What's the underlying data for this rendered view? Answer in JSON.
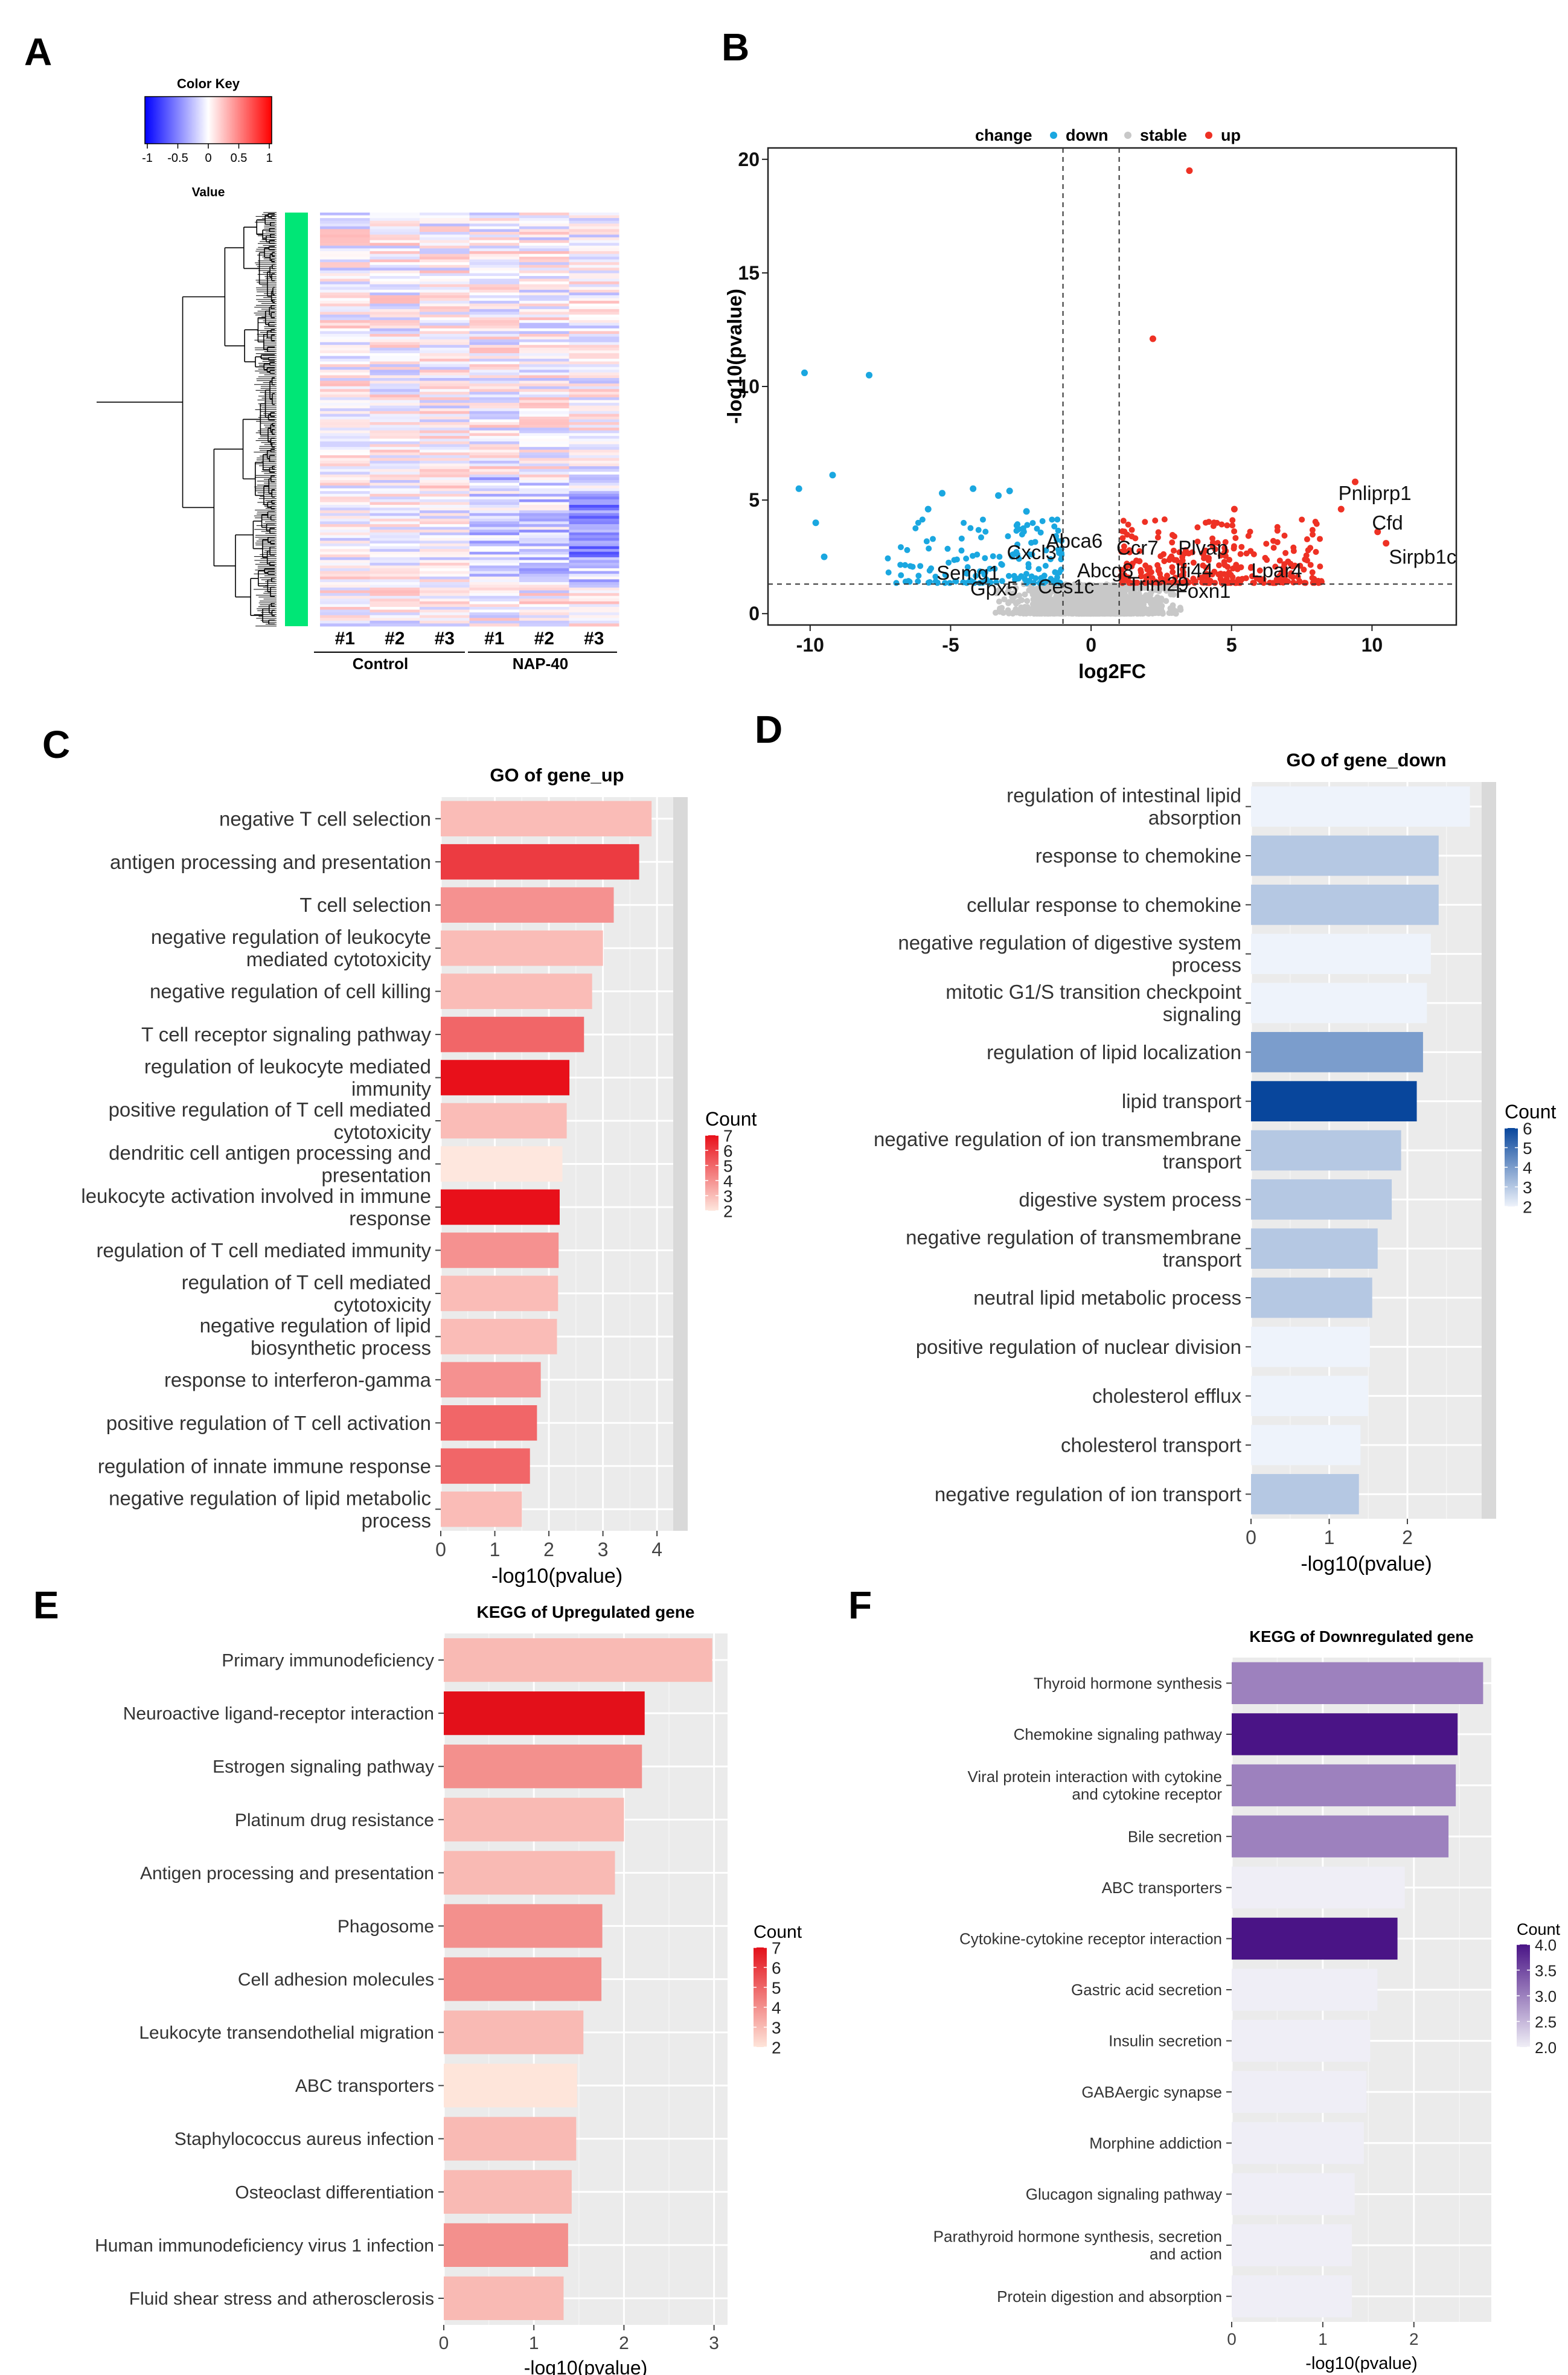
{
  "panels": {
    "A": {
      "letter": "A",
      "type": "heatmap",
      "color_key": {
        "title": "Color Key",
        "axis_label": "Value",
        "ticks": [
          "-1",
          "-0.5",
          "0",
          "0.5",
          "1"
        ],
        "colors": [
          "#0000ff",
          "#ffffff",
          "#ff0000"
        ]
      },
      "sample_labels": [
        "#1",
        "#2",
        "#3",
        "#1",
        "#2",
        "#3"
      ],
      "groups": [
        "Control",
        "NAP-40"
      ],
      "cluster_bar_color": "#00e676"
    },
    "B": {
      "letter": "B",
      "type": "scatter",
      "xlabel": "log2FC",
      "ylabel": "-log10(pvalue)",
      "xlim": [
        -11.5,
        13
      ],
      "ylim": [
        -0.5,
        20.5
      ],
      "xticks": [
        -10,
        -5,
        0,
        5,
        10
      ],
      "yticks": [
        0,
        5,
        10,
        15,
        20
      ],
      "legend": {
        "title": "change",
        "entries": [
          {
            "label": "down",
            "color": "#1aa7e0"
          },
          {
            "label": "stable",
            "color": "#c8c8c8"
          },
          {
            "label": "up",
            "color": "#ee3124"
          }
        ]
      },
      "thresholds": {
        "fc": [
          -1,
          1
        ],
        "p": 1.3
      },
      "highlight_points": [
        {
          "x": -10.2,
          "y": 10.6,
          "c": "down"
        },
        {
          "x": -7.9,
          "y": 10.5,
          "c": "down"
        },
        {
          "x": -9.2,
          "y": 6.1,
          "c": "down"
        },
        {
          "x": -10.4,
          "y": 5.5,
          "c": "down"
        },
        {
          "x": -9.8,
          "y": 4.0,
          "c": "down"
        },
        {
          "x": -9.5,
          "y": 2.5,
          "c": "down"
        },
        {
          "x": -5.3,
          "y": 5.3,
          "c": "down"
        },
        {
          "x": -4.2,
          "y": 5.5,
          "c": "down"
        },
        {
          "x": -3.3,
          "y": 5.2,
          "c": "down"
        },
        {
          "x": -2.9,
          "y": 5.4,
          "c": "down"
        },
        {
          "x": -5.8,
          "y": 4.6,
          "c": "down"
        },
        {
          "x": -2.3,
          "y": 4.5,
          "c": "down"
        },
        {
          "x": 3.5,
          "y": 19.5,
          "c": "up"
        },
        {
          "x": 2.2,
          "y": 12.1,
          "c": "up"
        },
        {
          "x": 9.4,
          "y": 5.8,
          "c": "up"
        },
        {
          "x": 8.9,
          "y": 4.6,
          "c": "up"
        },
        {
          "x": 10.2,
          "y": 3.6,
          "c": "up"
        },
        {
          "x": 10.5,
          "y": 3.1,
          "c": "up"
        },
        {
          "x": 5.1,
          "y": 4.6,
          "c": "up"
        }
      ],
      "gene_labels": [
        {
          "text": "Pnliprp1",
          "x": 8.8,
          "y": 5.0
        },
        {
          "text": "Cfd",
          "x": 10.0,
          "y": 3.7
        },
        {
          "text": "Sirpb1c",
          "x": 10.6,
          "y": 2.2
        },
        {
          "text": "Abca6",
          "x": -1.6,
          "y": 2.9
        },
        {
          "text": "Cxcl3",
          "x": -3.0,
          "y": 2.4
        },
        {
          "text": "Ccr7",
          "x": 0.9,
          "y": 2.6
        },
        {
          "text": "Plvap",
          "x": 3.1,
          "y": 2.6
        },
        {
          "text": "Semg1",
          "x": -5.5,
          "y": 1.5
        },
        {
          "text": "Abcg8",
          "x": -0.5,
          "y": 1.6
        },
        {
          "text": "Ifi44",
          "x": 3.0,
          "y": 1.6
        },
        {
          "text": "Lpar4",
          "x": 5.7,
          "y": 1.6
        },
        {
          "text": "Gpx5",
          "x": -4.3,
          "y": 0.8
        },
        {
          "text": "Ces1c",
          "x": -1.9,
          "y": 0.9
        },
        {
          "text": "Trim29",
          "x": 1.3,
          "y": 1.0
        },
        {
          "text": "Foxn1",
          "x": 3.0,
          "y": 0.7
        }
      ]
    },
    "C": {
      "letter": "C",
      "type": "bar",
      "title": "GO of gene_up",
      "xlabel": "-log10(pvalue)",
      "xlim": [
        0,
        4.3
      ],
      "xticks": [
        0,
        1,
        2,
        3,
        4
      ],
      "legend": {
        "title": "Count",
        "ticks": [
          "7",
          "6",
          "5",
          "4",
          "3",
          "2"
        ],
        "min": 2,
        "max": 7,
        "low_color": "#fee7de",
        "high_color": "#e8101a",
        "strip": true
      },
      "bars": [
        {
          "label": [
            "negative T cell selection"
          ],
          "value": 3.9,
          "count": 3
        },
        {
          "label": [
            "antigen processing and presentation"
          ],
          "value": 3.67,
          "count": 6
        },
        {
          "label": [
            "T cell selection"
          ],
          "value": 3.2,
          "count": 4
        },
        {
          "label": [
            "negative regulation of leukocyte",
            "mediated cytotoxicity"
          ],
          "value": 3.0,
          "count": 3
        },
        {
          "label": [
            "negative regulation of cell killing"
          ],
          "value": 2.8,
          "count": 3
        },
        {
          "label": [
            "T cell receptor signaling pathway"
          ],
          "value": 2.65,
          "count": 5
        },
        {
          "label": [
            "regulation of leukocyte mediated",
            "immunity"
          ],
          "value": 2.38,
          "count": 7
        },
        {
          "label": [
            "positive regulation of T cell mediated",
            "cytotoxicity"
          ],
          "value": 2.33,
          "count": 3
        },
        {
          "label": [
            "dendritic cell antigen processing and",
            "presentation"
          ],
          "value": 2.25,
          "count": 2
        },
        {
          "label": [
            "leukocyte activation involved in immune",
            "response"
          ],
          "value": 2.2,
          "count": 7
        },
        {
          "label": [
            "regulation of T cell mediated immunity"
          ],
          "value": 2.18,
          "count": 4
        },
        {
          "label": [
            "regulation of T cell mediated",
            "cytotoxicity"
          ],
          "value": 2.17,
          "count": 3
        },
        {
          "label": [
            "negative regulation of lipid",
            "biosynthetic process"
          ],
          "value": 2.15,
          "count": 3
        },
        {
          "label": [
            "response to interferon-gamma"
          ],
          "value": 1.85,
          "count": 4
        },
        {
          "label": [
            "positive regulation of T cell activation"
          ],
          "value": 1.78,
          "count": 5
        },
        {
          "label": [
            "regulation of innate immune response"
          ],
          "value": 1.65,
          "count": 5
        },
        {
          "label": [
            "negative regulation of lipid metabolic",
            "process"
          ],
          "value": 1.5,
          "count": 3
        }
      ]
    },
    "D": {
      "letter": "D",
      "type": "bar",
      "title": "GO of gene_down",
      "xlabel": "-log10(pvalue)",
      "xlim": [
        0,
        2.95
      ],
      "xticks": [
        0,
        1,
        2
      ],
      "legend": {
        "title": "Count",
        "ticks": [
          "6",
          "5",
          "4",
          "3",
          "2"
        ],
        "min": 2,
        "max": 6,
        "low_color": "#eef3fb",
        "high_color": "#08469c",
        "strip": true
      },
      "bars": [
        {
          "label": [
            "regulation of intestinal lipid",
            "absorption"
          ],
          "value": 2.8,
          "count": 2
        },
        {
          "label": [
            "response to chemokine"
          ],
          "value": 2.4,
          "count": 3
        },
        {
          "label": [
            "cellular response to chemokine"
          ],
          "value": 2.4,
          "count": 3
        },
        {
          "label": [
            "negative regulation of digestive system",
            "process"
          ],
          "value": 2.3,
          "count": 2
        },
        {
          "label": [
            "mitotic G1/S transition checkpoint",
            "signaling"
          ],
          "value": 2.25,
          "count": 2
        },
        {
          "label": [
            "regulation of lipid localization"
          ],
          "value": 2.2,
          "count": 4
        },
        {
          "label": [
            "lipid transport"
          ],
          "value": 2.12,
          "count": 6
        },
        {
          "label": [
            "negative regulation of ion transmembrane",
            "transport"
          ],
          "value": 1.92,
          "count": 3
        },
        {
          "label": [
            "digestive system process"
          ],
          "value": 1.8,
          "count": 3
        },
        {
          "label": [
            "negative regulation of transmembrane",
            "transport"
          ],
          "value": 1.62,
          "count": 3
        },
        {
          "label": [
            "neutral lipid metabolic process"
          ],
          "value": 1.55,
          "count": 3
        },
        {
          "label": [
            "positive regulation of nuclear division"
          ],
          "value": 1.52,
          "count": 2
        },
        {
          "label": [
            "cholesterol efflux"
          ],
          "value": 1.5,
          "count": 2
        },
        {
          "label": [
            "cholesterol transport"
          ],
          "value": 1.4,
          "count": 2
        },
        {
          "label": [
            "negative regulation of ion transport"
          ],
          "value": 1.38,
          "count": 3
        }
      ]
    },
    "E": {
      "letter": "E",
      "type": "bar",
      "title": "KEGG of Upregulated gene",
      "xlabel": "-log10(pvalue)",
      "xlim": [
        0,
        3.15
      ],
      "xticks": [
        0,
        1,
        2,
        3
      ],
      "legend": {
        "title": "Count",
        "ticks": [
          "7",
          "6",
          "5",
          "4",
          "3",
          "2"
        ],
        "min": 2,
        "max": 7,
        "low_color": "#fee5da",
        "high_color": "#e3101a",
        "strip": false
      },
      "bars": [
        {
          "label": [
            "Primary immunodeficiency"
          ],
          "value": 2.98,
          "count": 3
        },
        {
          "label": [
            "Neuroactive ligand-receptor interaction"
          ],
          "value": 2.23,
          "count": 7
        },
        {
          "label": [
            "Estrogen signaling pathway"
          ],
          "value": 2.2,
          "count": 4
        },
        {
          "label": [
            "Platinum drug resistance"
          ],
          "value": 2.0,
          "count": 3
        },
        {
          "label": [
            "Antigen processing and presentation"
          ],
          "value": 1.9,
          "count": 3
        },
        {
          "label": [
            "Phagosome"
          ],
          "value": 1.76,
          "count": 4
        },
        {
          "label": [
            "Cell adhesion molecules"
          ],
          "value": 1.75,
          "count": 4
        },
        {
          "label": [
            "Leukocyte transendothelial migration"
          ],
          "value": 1.55,
          "count": 3
        },
        {
          "label": [
            "ABC transporters"
          ],
          "value": 1.48,
          "count": 2
        },
        {
          "label": [
            "Staphylococcus aureus infection"
          ],
          "value": 1.47,
          "count": 3
        },
        {
          "label": [
            "Osteoclast differentiation"
          ],
          "value": 1.42,
          "count": 3
        },
        {
          "label": [
            "Human immunodeficiency virus 1 infection"
          ],
          "value": 1.38,
          "count": 4
        },
        {
          "label": [
            "Fluid shear stress and atherosclerosis"
          ],
          "value": 1.33,
          "count": 3
        }
      ]
    },
    "F": {
      "letter": "F",
      "type": "bar",
      "title": "KEGG of Downregulated gene",
      "xlabel": "-log10(pvalue)",
      "xlim": [
        0,
        2.85
      ],
      "xticks": [
        0,
        1,
        2
      ],
      "legend": {
        "title": "Count",
        "ticks": [
          "4.0",
          "3.5",
          "3.0",
          "2.5",
          "2.0"
        ],
        "min": 2,
        "max": 4,
        "low_color": "#efeef6",
        "high_color": "#4a1486",
        "strip": false
      },
      "bars": [
        {
          "label": [
            "Thyroid hormone synthesis"
          ],
          "value": 2.76,
          "count": 3
        },
        {
          "label": [
            "Chemokine signaling pathway"
          ],
          "value": 2.48,
          "count": 4
        },
        {
          "label": [
            "Viral protein interaction with cytokine",
            "and cytokine receptor"
          ],
          "value": 2.46,
          "count": 3
        },
        {
          "label": [
            "Bile secretion"
          ],
          "value": 2.38,
          "count": 3
        },
        {
          "label": [
            "ABC transporters"
          ],
          "value": 1.9,
          "count": 2
        },
        {
          "label": [
            "Cytokine-cytokine receptor interaction"
          ],
          "value": 1.82,
          "count": 4
        },
        {
          "label": [
            "Gastric acid secretion"
          ],
          "value": 1.6,
          "count": 2
        },
        {
          "label": [
            "Insulin secretion"
          ],
          "value": 1.52,
          "count": 2
        },
        {
          "label": [
            "GABAergic synapse"
          ],
          "value": 1.48,
          "count": 2
        },
        {
          "label": [
            "Morphine addiction"
          ],
          "value": 1.45,
          "count": 2
        },
        {
          "label": [
            "Glucagon signaling pathway"
          ],
          "value": 1.35,
          "count": 2
        },
        {
          "label": [
            "Parathyroid hormone synthesis, secretion",
            "and action"
          ],
          "value": 1.32,
          "count": 2
        },
        {
          "label": [
            "Protein digestion and absorption"
          ],
          "value": 1.32,
          "count": 2
        }
      ]
    }
  }
}
